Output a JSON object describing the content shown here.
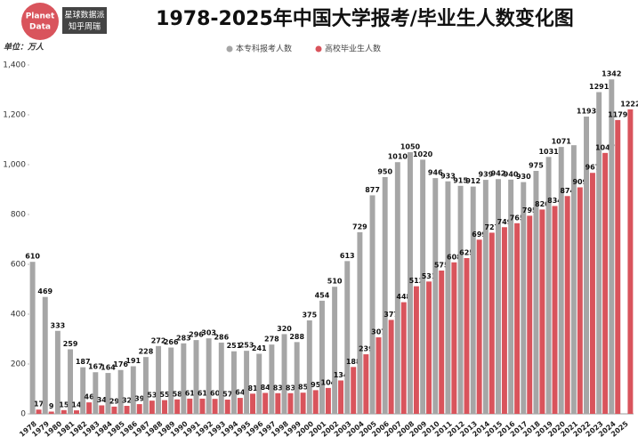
{
  "logo": {
    "line1": "Planet",
    "line2": "Data",
    "brand": "星球数据派",
    "author": "知乎周瑞"
  },
  "chart_data": {
    "type": "bar",
    "title": "1978-2025年中国大学报考/毕业生人数变化图",
    "unit": "单位：万人",
    "categories": [
      "1978",
      "1979",
      "1980",
      "1981",
      "1982",
      "1983",
      "1984",
      "1985",
      "1986",
      "1987",
      "1988",
      "1989",
      "1990",
      "1991",
      "1992",
      "1993",
      "1994",
      "1995",
      "1996",
      "1997",
      "1998",
      "1999",
      "2000",
      "2001",
      "2002",
      "2003",
      "2004",
      "2005",
      "2006",
      "2007",
      "2008",
      "2009",
      "2010",
      "2011",
      "2012",
      "2013",
      "2014",
      "2015",
      "2016",
      "2017",
      "2018",
      "2019",
      "2020",
      "2021",
      "2022",
      "2023",
      "2024",
      "2025"
    ],
    "series": [
      {
        "name": "本专科报考人数",
        "color": "#a6a6a6",
        "values": [
          610,
          469,
          333,
          259,
          187,
          167,
          164,
          176,
          191,
          228,
          272,
          266,
          283,
          296,
          303,
          286,
          251,
          253,
          241,
          278,
          320,
          288,
          375,
          454,
          510,
          613,
          729,
          877,
          950,
          1010,
          1050,
          1020,
          946,
          933,
          915,
          912,
          939,
          942,
          940,
          930,
          975,
          1031,
          1071,
          1078,
          1193,
          1291,
          1342,
          null
        ],
        "value_labels": [
          "610",
          "469",
          "333",
          "259",
          "187",
          "167",
          "164",
          "176",
          "191",
          "228",
          "272",
          "266",
          "283",
          "296",
          "303",
          "286",
          "251",
          "253",
          "241",
          "278",
          "320",
          "288",
          "375",
          "454",
          "510",
          "613",
          "729",
          "877",
          "950",
          "1010",
          "1050",
          "1020",
          "946",
          "933",
          "915",
          "912",
          "939",
          "942",
          "940",
          "930",
          "975",
          "1031",
          "1071",
          null,
          "1193",
          "1291",
          "1342",
          null
        ]
      },
      {
        "name": "高校毕业生人数",
        "color": "#d9545c",
        "values": [
          17,
          9,
          15,
          14,
          46,
          34,
          29,
          32,
          39,
          53,
          55,
          58,
          61,
          61,
          60,
          57,
          64,
          81,
          84,
          83,
          83,
          85,
          95,
          104,
          134,
          188,
          239,
          307,
          377,
          448,
          512,
          531,
          575,
          608,
          625,
          699,
          727,
          749,
          765,
          795,
          820,
          834,
          874,
          909,
          967,
          1047,
          1179,
          1222
        ]
      }
    ],
    "ylim": [
      0,
      1400
    ],
    "yticks": [
      0,
      200,
      400,
      600,
      800,
      {
        "value": 1000,
        "label": "1,000"
      },
      {
        "value": 1200,
        "label": "1,200"
      },
      {
        "value": 1400,
        "label": "1,400"
      }
    ],
    "legend": "top"
  }
}
